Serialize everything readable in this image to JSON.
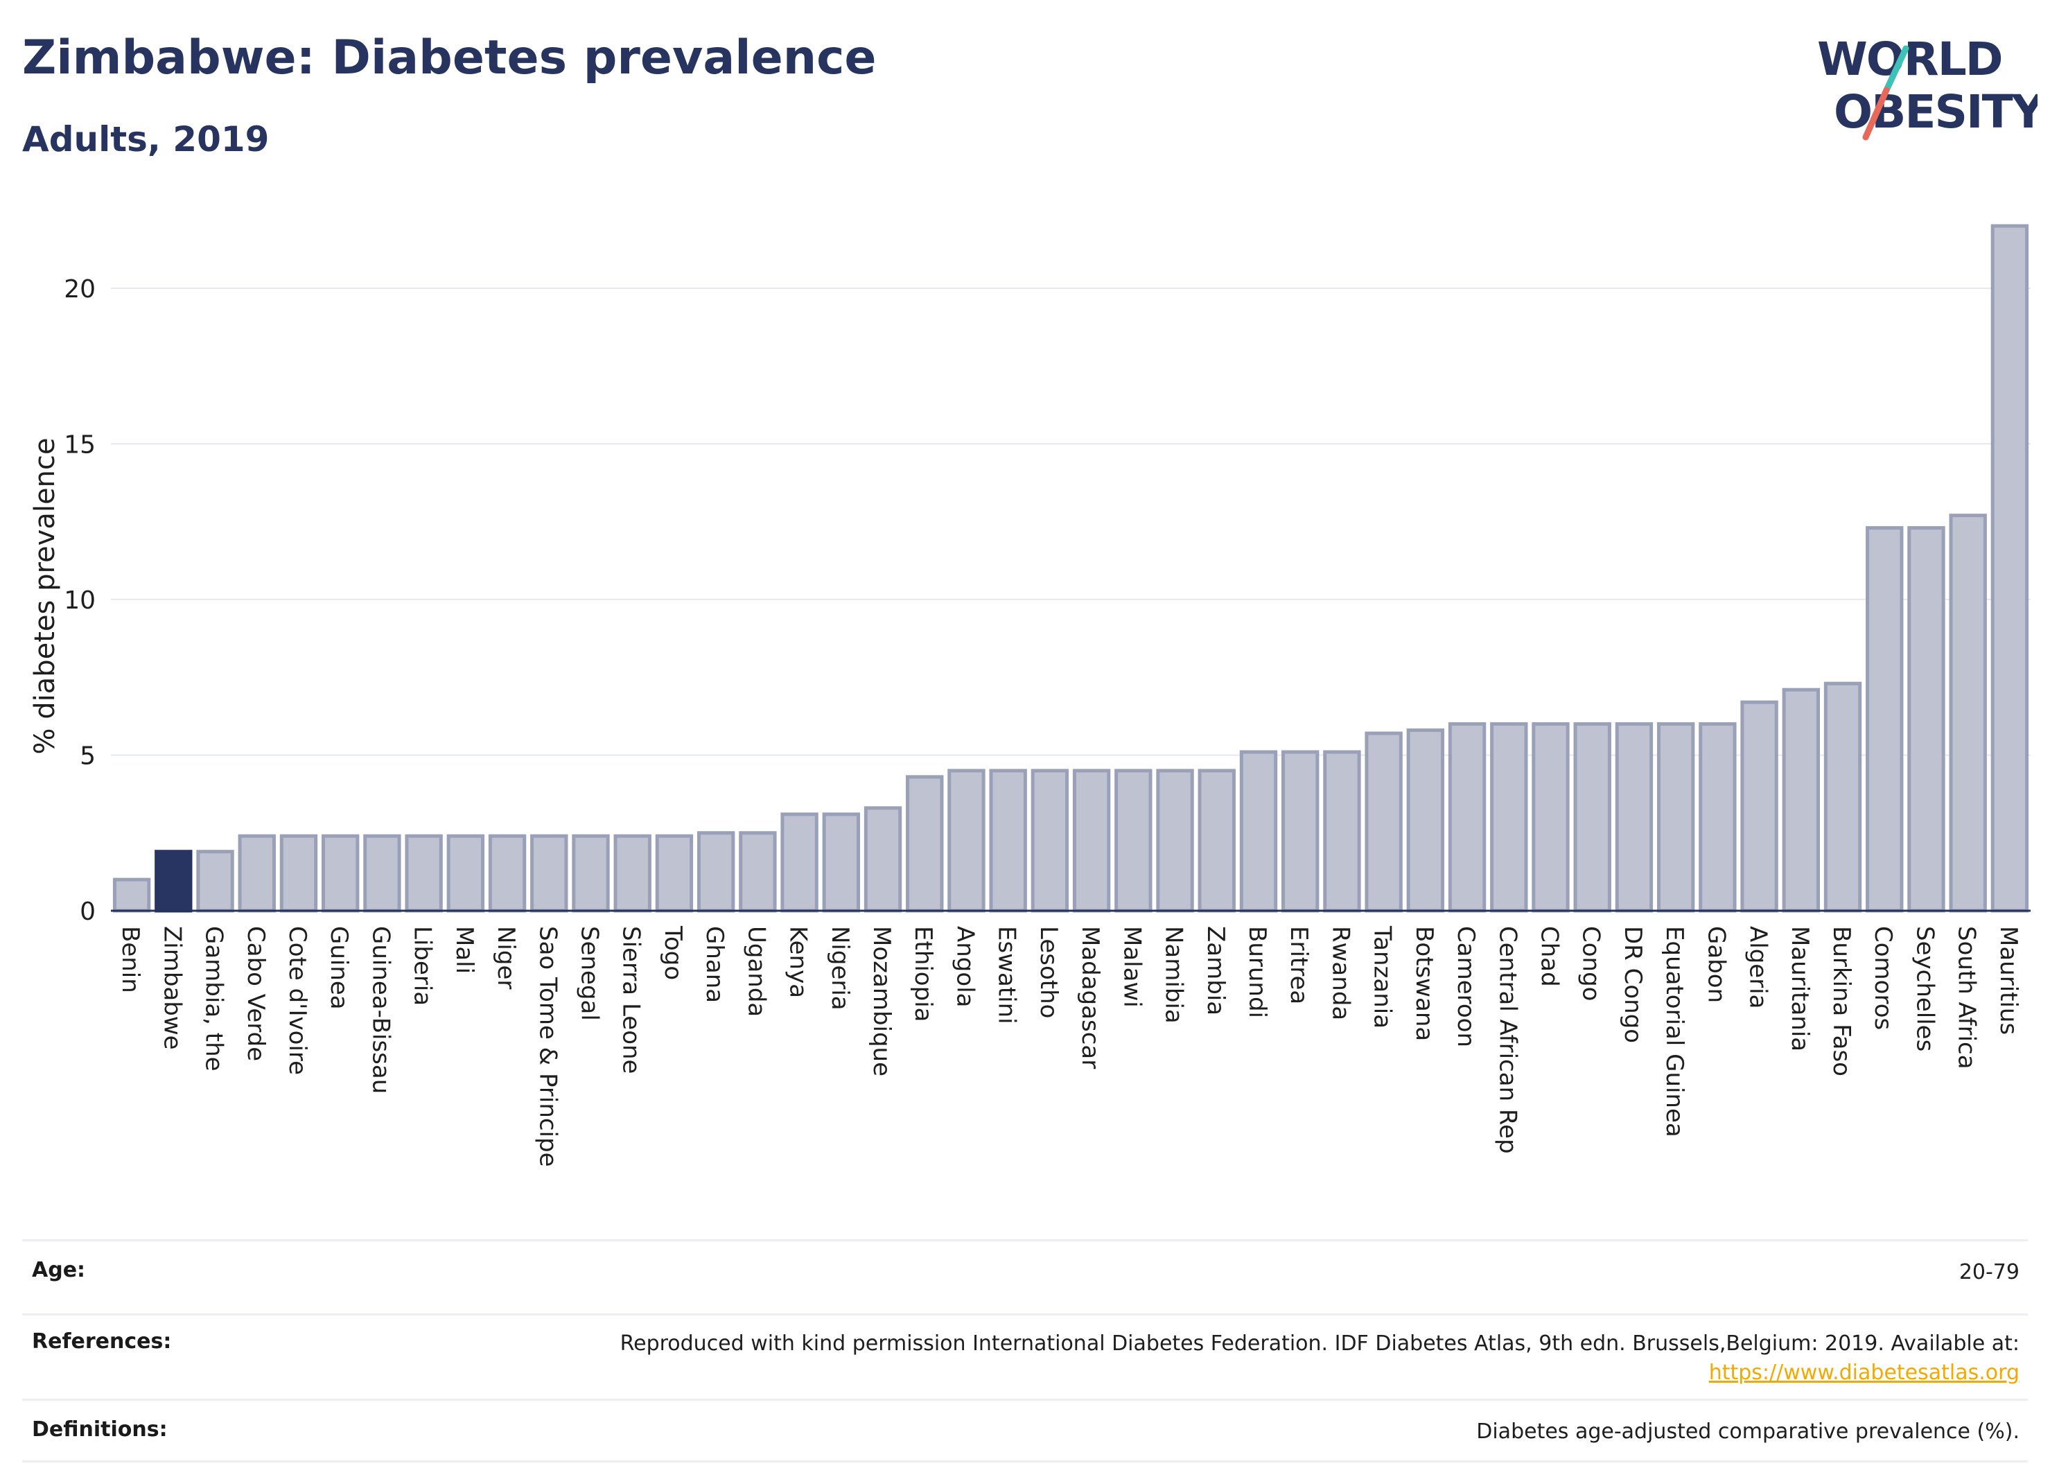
{
  "header": {
    "title": "Zimbabwe: Diabetes prevalence",
    "subtitle": "Adults, 2019"
  },
  "logo": {
    "line1": "WORLD",
    "line2": "OBESITY",
    "text_color": "#27345f",
    "slash_top_color": "#3ec1b6",
    "slash_bottom_color": "#e8695a"
  },
  "colors": {
    "highlight_bar": "#283562",
    "normal_bar_fill": "#bfc3d1",
    "normal_bar_stroke": "#9aa0b7",
    "grid": "#e6e8ef",
    "axis": "#26335e"
  },
  "chart_data": {
    "type": "bar",
    "ylabel": "% diabetes prevalence",
    "xlabel": "",
    "ylim": [
      0,
      22
    ],
    "yticks": [
      0,
      5,
      10,
      15,
      20
    ],
    "grid": true,
    "highlight": "Zimbabwe",
    "categories": [
      "Benin",
      "Zimbabwe",
      "Gambia, the",
      "Cabo Verde",
      "Cote d'Ivoire",
      "Guinea",
      "Guinea-Bissau",
      "Liberia",
      "Mali",
      "Niger",
      "Sao Tome & Principe",
      "Senegal",
      "Sierra Leone",
      "Togo",
      "Ghana",
      "Uganda",
      "Kenya",
      "Nigeria",
      "Mozambique",
      "Ethiopia",
      "Angola",
      "Eswatini",
      "Lesotho",
      "Madagascar",
      "Malawi",
      "Namibia",
      "Zambia",
      "Burundi",
      "Eritrea",
      "Rwanda",
      "Tanzania",
      "Botswana",
      "Cameroon",
      "Central African Rep",
      "Chad",
      "Congo",
      "DR Congo",
      "Equatorial Guinea",
      "Gabon",
      "Algeria",
      "Mauritania",
      "Burkina Faso",
      "Comoros",
      "Seychelles",
      "South Africa",
      "Mauritius"
    ],
    "values": [
      1.0,
      1.9,
      1.9,
      2.4,
      2.4,
      2.4,
      2.4,
      2.4,
      2.4,
      2.4,
      2.4,
      2.4,
      2.4,
      2.4,
      2.5,
      2.5,
      3.1,
      3.1,
      3.3,
      4.3,
      4.5,
      4.5,
      4.5,
      4.5,
      4.5,
      4.5,
      4.5,
      5.1,
      5.1,
      5.1,
      5.7,
      5.8,
      6.0,
      6.0,
      6.0,
      6.0,
      6.0,
      6.0,
      6.0,
      6.7,
      7.1,
      7.3,
      12.3,
      12.3,
      12.7,
      22.0
    ]
  },
  "info_table": {
    "rows": [
      {
        "label": "Age:",
        "value": "20-79"
      },
      {
        "label": "References:",
        "value": "Reproduced with kind permission International Diabetes Federation. IDF Diabetes Atlas, 9th edn. Brussels,Belgium: 2019. Available at:",
        "link": "https://www.diabetesatlas.org"
      },
      {
        "label": "Definitions:",
        "value": "Diabetes age-adjusted comparative prevalence (%)."
      }
    ]
  }
}
